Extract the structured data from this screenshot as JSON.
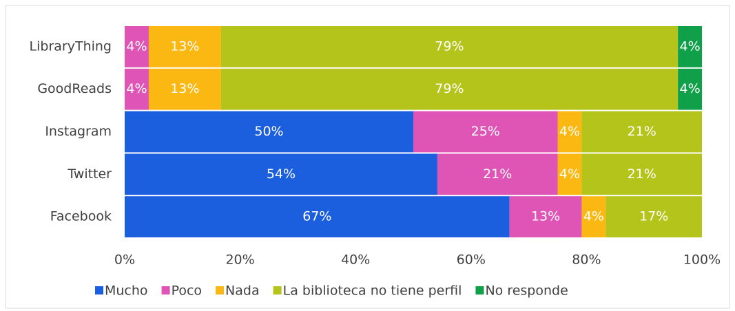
{
  "chart_data": {
    "type": "stacked-bar-horizontal",
    "categories": [
      "LibraryThing",
      "GoodReads",
      "Instagram",
      "Twitter",
      "Facebook"
    ],
    "series": [
      {
        "name": "Mucho",
        "color": "#1b5fdf",
        "values": [
          0,
          0,
          50,
          54.17,
          66.67
        ],
        "value_labels": [
          null,
          null,
          "50%",
          "54%",
          "67%"
        ]
      },
      {
        "name": "Poco",
        "color": "#df55b6",
        "values": [
          4.17,
          4.17,
          25,
          20.83,
          12.5
        ],
        "value_labels": [
          "4%",
          "4%",
          "25%",
          "21%",
          "13%"
        ]
      },
      {
        "name": "Nada",
        "color": "#fbb813",
        "values": [
          12.5,
          12.5,
          4.17,
          4.17,
          4.17
        ],
        "value_labels": [
          "13%",
          "13%",
          "4%",
          "4%",
          "4%"
        ]
      },
      {
        "name": "La biblioteca no tiene perfil",
        "color": "#b4c41a",
        "values": [
          79.17,
          79.17,
          20.83,
          20.83,
          16.67
        ],
        "value_labels": [
          "79%",
          "79%",
          "21%",
          "21%",
          "17%"
        ]
      },
      {
        "name": "No responde",
        "color": "#11a04a",
        "values": [
          4.17,
          4.17,
          0,
          0,
          0
        ],
        "value_labels": [
          "4%",
          "4%",
          null,
          null,
          null
        ]
      }
    ],
    "xlim": [
      0,
      100
    ],
    "xticks": [
      {
        "value": 0,
        "label": "0%"
      },
      {
        "value": 20,
        "label": "20%"
      },
      {
        "value": 40,
        "label": "40%"
      },
      {
        "value": 60,
        "label": "60%"
      },
      {
        "value": 80,
        "label": "80%"
      },
      {
        "value": 100,
        "label": "100%"
      }
    ],
    "grid": false,
    "legend": "bottom"
  }
}
